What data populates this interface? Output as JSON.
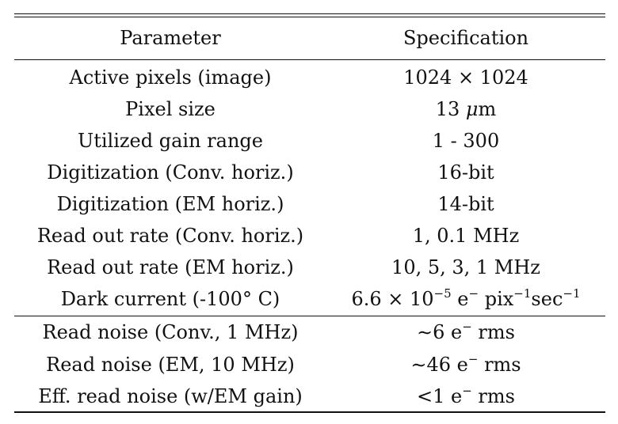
{
  "table": {
    "header": {
      "parameter": "Parameter",
      "specification": "Specification"
    },
    "rows": [
      {
        "parameter": "Active pixels (image)",
        "spec_text": "1024 × 1024"
      },
      {
        "parameter": "Pixel size",
        "spec_value": "13",
        "spec_unit_symbol": "μ",
        "spec_unit": "m"
      },
      {
        "parameter": "Utilized gain range",
        "spec_text": "1 - 300"
      },
      {
        "parameter": "Digitization (Conv. horiz.)",
        "spec_text": "16-bit"
      },
      {
        "parameter": "Digitization (EM horiz.)",
        "spec_text": "14-bit"
      },
      {
        "parameter": "Read out rate (Conv. horiz.)",
        "spec_text": "1, 0.1 MHz"
      },
      {
        "parameter": "Read out rate (EM horiz.)",
        "spec_text": "10, 5, 3, 1 MHz"
      },
      {
        "parameter": "Dark current (-100° C)",
        "spec_mantissa": "6.6 × 10",
        "spec_exp": "−5",
        "spec_e": " e",
        "spec_e_sup": "−",
        "spec_pix": " pix",
        "spec_pix_sup": "−1",
        "spec_sec": "sec",
        "spec_sec_sup": "−1"
      },
      {
        "parameter": "Read noise (Conv., 1 MHz)",
        "spec_pre": "∼6 e",
        "spec_sup": "−",
        "spec_post": " rms"
      },
      {
        "parameter": "Read noise (EM, 10 MHz)",
        "spec_pre": "∼46 e",
        "spec_sup": "−",
        "spec_post": " rms"
      },
      {
        "parameter": "Eff. read noise (w/EM gain)",
        "spec_pre": "<1 e",
        "spec_sup": "−",
        "spec_post": " rms"
      }
    ]
  }
}
